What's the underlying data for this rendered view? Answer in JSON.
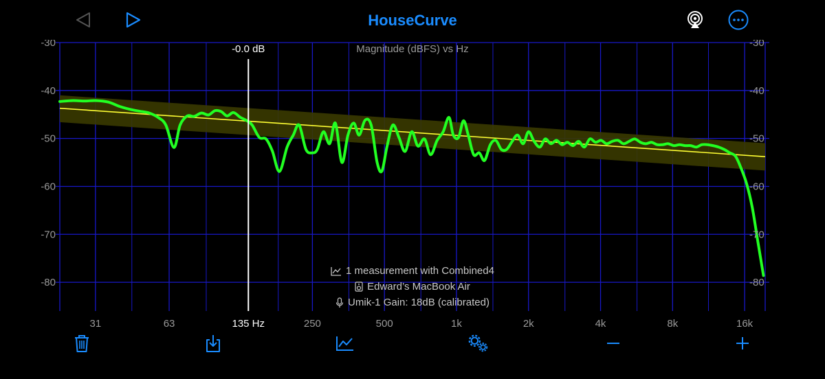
{
  "header": {
    "title": "HouseCurve",
    "back_icon": "triangle-left-icon",
    "play_icon": "triangle-right-icon",
    "airplay_icon": "airplay-icon",
    "more_icon": "ellipsis-circle-icon"
  },
  "chart_data": {
    "type": "line",
    "title": "Magnitude (dBFS) vs Hz",
    "xlabel": "",
    "ylabel": "",
    "x_scale": "log",
    "xlim": [
      22,
      19500
    ],
    "ylim": [
      -86,
      -30
    ],
    "y_ticks": [
      "-30",
      "-40",
      "-50",
      "-60",
      "-70",
      "-80"
    ],
    "x_ticks": [
      "31",
      "63",
      "135 Hz",
      "250",
      "500",
      "1k",
      "2k",
      "4k",
      "8k",
      "16k"
    ],
    "grid": true,
    "cursor": {
      "freq_label": "135 Hz",
      "value_label": "-0.0 dB",
      "freq": 135
    },
    "series": [
      {
        "name": "",
        "color": "#22ff22",
        "points": [
          [
            22,
            -42.3
          ],
          [
            25,
            -42.1
          ],
          [
            28,
            -42.2
          ],
          [
            31,
            -42.1
          ],
          [
            35,
            -42.4
          ],
          [
            39,
            -43.3
          ],
          [
            43,
            -43.9
          ],
          [
            47,
            -44.3
          ],
          [
            52,
            -44.7
          ],
          [
            57,
            -45.7
          ],
          [
            61,
            -47.2
          ],
          [
            66,
            -51.9
          ],
          [
            70,
            -47.2
          ],
          [
            75,
            -45.3
          ],
          [
            80,
            -45.4
          ],
          [
            86,
            -44.7
          ],
          [
            92,
            -45.1
          ],
          [
            98,
            -44.2
          ],
          [
            104,
            -44.4
          ],
          [
            110,
            -45.3
          ],
          [
            117,
            -44.6
          ],
          [
            125,
            -45.6
          ],
          [
            133,
            -46.3
          ],
          [
            140,
            -47.2
          ],
          [
            150,
            -49.8
          ],
          [
            160,
            -50.1
          ],
          [
            170,
            -52.6
          ],
          [
            182,
            -56.9
          ],
          [
            196,
            -51.8
          ],
          [
            208,
            -49.3
          ],
          [
            220,
            -47.2
          ],
          [
            235,
            -52.3
          ],
          [
            250,
            -53.0
          ],
          [
            262,
            -52.3
          ],
          [
            278,
            -48.6
          ],
          [
            295,
            -51.1
          ],
          [
            312,
            -46.8
          ],
          [
            332,
            -55.0
          ],
          [
            352,
            -49.3
          ],
          [
            372,
            -46.8
          ],
          [
            392,
            -49.3
          ],
          [
            415,
            -46.2
          ],
          [
            440,
            -47.2
          ],
          [
            466,
            -55.0
          ],
          [
            488,
            -56.8
          ],
          [
            512,
            -51.8
          ],
          [
            542,
            -47.2
          ],
          [
            575,
            -49.8
          ],
          [
            610,
            -52.7
          ],
          [
            650,
            -48.6
          ],
          [
            690,
            -51.6
          ],
          [
            735,
            -50.1
          ],
          [
            780,
            -53.4
          ],
          [
            830,
            -50.4
          ],
          [
            880,
            -48.6
          ],
          [
            930,
            -45.6
          ],
          [
            970,
            -49.3
          ],
          [
            1020,
            -49.8
          ],
          [
            1070,
            -46.3
          ],
          [
            1120,
            -49.3
          ],
          [
            1180,
            -53.4
          ],
          [
            1245,
            -53.0
          ],
          [
            1310,
            -54.6
          ],
          [
            1385,
            -51.3
          ],
          [
            1460,
            -50.4
          ],
          [
            1540,
            -52.3
          ],
          [
            1620,
            -52.3
          ],
          [
            1710,
            -50.6
          ],
          [
            1800,
            -49.3
          ],
          [
            1900,
            -51.1
          ],
          [
            2000,
            -48.6
          ],
          [
            2110,
            -50.6
          ],
          [
            2230,
            -51.8
          ],
          [
            2350,
            -50.1
          ],
          [
            2480,
            -51.1
          ],
          [
            2620,
            -50.4
          ],
          [
            2760,
            -51.3
          ],
          [
            2910,
            -50.8
          ],
          [
            3070,
            -51.5
          ],
          [
            3240,
            -50.6
          ],
          [
            3420,
            -51.8
          ],
          [
            3610,
            -50.1
          ],
          [
            3810,
            -50.8
          ],
          [
            4020,
            -50.4
          ],
          [
            4240,
            -51.1
          ],
          [
            4480,
            -50.6
          ],
          [
            4730,
            -50.4
          ],
          [
            4990,
            -51.1
          ],
          [
            5270,
            -50.6
          ],
          [
            5560,
            -50.1
          ],
          [
            5870,
            -50.8
          ],
          [
            6190,
            -51.1
          ],
          [
            6530,
            -50.8
          ],
          [
            6890,
            -51.3
          ],
          [
            7270,
            -51.3
          ],
          [
            7670,
            -51.1
          ],
          [
            8100,
            -51.5
          ],
          [
            8550,
            -51.3
          ],
          [
            9020,
            -51.5
          ],
          [
            9520,
            -51.5
          ],
          [
            10050,
            -51.8
          ],
          [
            10600,
            -51.3
          ],
          [
            11190,
            -51.3
          ],
          [
            11810,
            -51.5
          ],
          [
            12460,
            -51.8
          ],
          [
            13150,
            -52.3
          ],
          [
            13880,
            -53.0
          ],
          [
            14650,
            -53.7
          ],
          [
            15460,
            -56.2
          ],
          [
            16320,
            -59.5
          ],
          [
            17220,
            -64.4
          ],
          [
            18170,
            -71.5
          ],
          [
            19180,
            -78.6
          ]
        ]
      },
      {
        "name": "",
        "color": "#ffff33",
        "points": [
          [
            22,
            -43.7
          ],
          [
            19500,
            -53.8
          ]
        ],
        "band_upper": [
          [
            22,
            -41.0
          ],
          [
            19500,
            -51.0
          ]
        ],
        "band_lower": [
          [
            22,
            -46.6
          ],
          [
            19500,
            -56.7
          ]
        ]
      }
    ]
  },
  "info": {
    "measurement": "1 measurement with Combined4",
    "speaker": "Edward’s MacBook Air",
    "mic": "Umik-1  Gain: 18dB (calibrated)",
    "measurement_icon": "chart-line-icon",
    "speaker_icon": "speaker-icon",
    "mic_icon": "microphone-icon"
  },
  "toolbar": {
    "items": [
      {
        "name": "delete",
        "icon": "trash-icon"
      },
      {
        "name": "import",
        "icon": "download-tray-icon"
      },
      {
        "name": "measure",
        "icon": "chart-line-icon"
      },
      {
        "name": "settings",
        "icon": "gears-icon"
      },
      {
        "name": "zoom-out",
        "icon": "minus-icon"
      },
      {
        "name": "zoom-in",
        "icon": "plus-icon"
      }
    ]
  },
  "colors": {
    "accent": "#1a8cff",
    "grid": "#1818c8",
    "curve": "#22ff22",
    "target": "#ffff33",
    "band": "#3a3a00"
  }
}
